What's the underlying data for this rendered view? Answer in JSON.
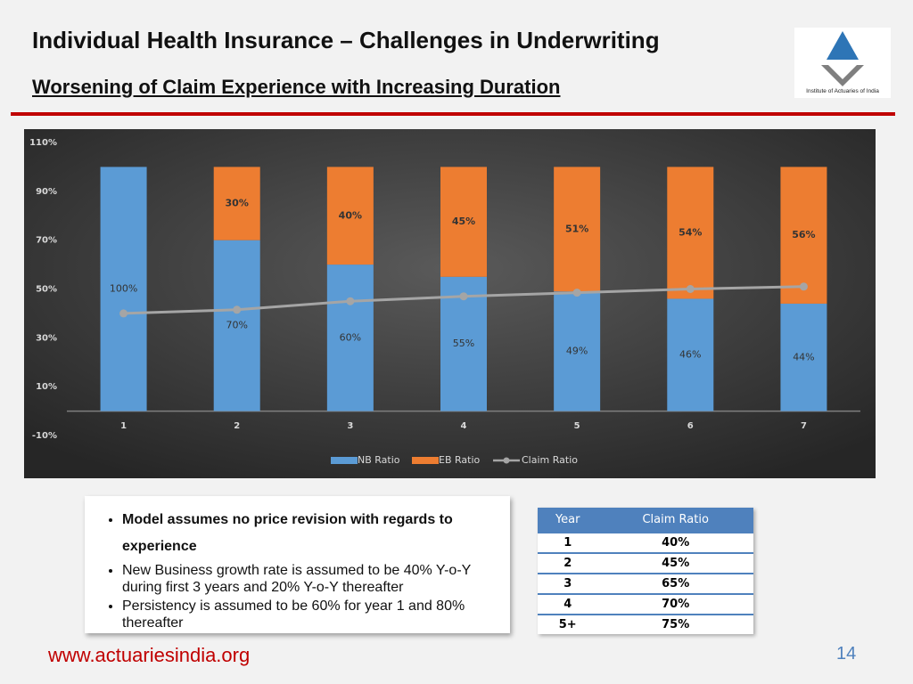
{
  "header": {
    "title": "Individual Health Insurance – Challenges in Underwriting",
    "subtitle": "Worsening of Claim Experience with Increasing Duration",
    "logo_text": "Institute of Actuaries of India"
  },
  "chart_data": {
    "type": "stacked-bar-line",
    "categories": [
      "1",
      "2",
      "3",
      "4",
      "5",
      "6",
      "7"
    ],
    "series": [
      {
        "name": "NB Ratio",
        "color": "#5b9bd5",
        "kind": "bar",
        "values": [
          100,
          70,
          60,
          55,
          49,
          46,
          44
        ],
        "value_labels": [
          "100%",
          "70%",
          "60%",
          "55%",
          "49%",
          "46%",
          "44%"
        ]
      },
      {
        "name": "EB Ratio",
        "color": "#ed7d31",
        "kind": "bar",
        "values": [
          null,
          30,
          40,
          45,
          51,
          54,
          56
        ],
        "value_labels": [
          null,
          "30%",
          "40%",
          "45%",
          "51%",
          "54%",
          "56%"
        ]
      },
      {
        "name": "Claim Ratio",
        "color": "#a5a5a5",
        "kind": "line",
        "values": [
          40,
          41.5,
          45,
          47,
          48.5,
          50,
          51
        ]
      }
    ],
    "ylim": [
      -10,
      110
    ],
    "yticks": [
      {
        "value": -10,
        "label": "-10%"
      },
      {
        "value": 10,
        "label": "10%"
      },
      {
        "value": 30,
        "label": "30%"
      },
      {
        "value": 50,
        "label": "50%"
      },
      {
        "value": 70,
        "label": "70%"
      },
      {
        "value": 90,
        "label": "90%"
      },
      {
        "value": 110,
        "label": "110%"
      }
    ],
    "legend": "bottom"
  },
  "notes": {
    "bullets": [
      "Model assumes no price revision with regards to experience",
      "New Business growth rate is assumed to be 40% Y-o-Y during first 3 years and 20% Y-o-Y thereafter",
      "Persistency is assumed to be 60% for year 1 and 80% thereafter"
    ]
  },
  "table": {
    "header": [
      "Year",
      "Claim Ratio"
    ],
    "rows": [
      [
        "1",
        "40%"
      ],
      [
        "2",
        "45%"
      ],
      [
        "3",
        "65%"
      ],
      [
        "4",
        "70%"
      ],
      [
        "5+",
        "75%"
      ]
    ]
  },
  "footer": {
    "url": "www.actuariesindia.org",
    "page": "14"
  }
}
